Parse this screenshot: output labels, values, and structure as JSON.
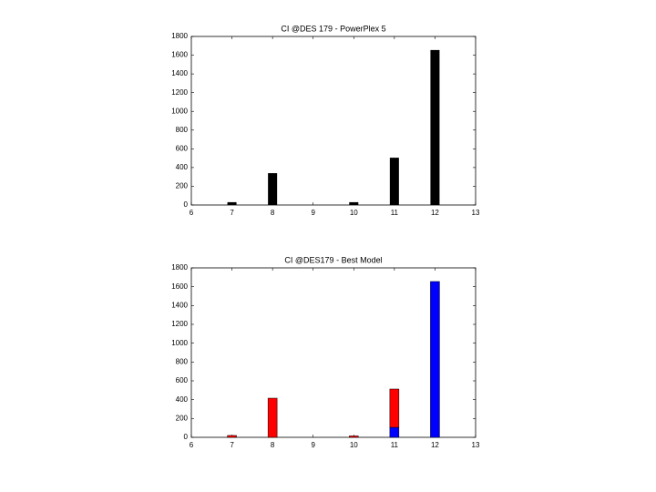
{
  "chart_data": [
    {
      "type": "bar",
      "title": "CI @DES 179 - PowerPlex 5",
      "x": [
        7,
        8,
        9,
        10,
        11,
        12
      ],
      "values": [
        30,
        340,
        0,
        30,
        505,
        1655
      ],
      "color": "#000000",
      "xlim": [
        6,
        13
      ],
      "xticks": [
        6,
        7,
        8,
        9,
        10,
        11,
        12,
        13
      ],
      "ylim": [
        0,
        1800
      ],
      "yticks": [
        0,
        200,
        400,
        600,
        800,
        1000,
        1200,
        1400,
        1600,
        1800
      ]
    },
    {
      "type": "stacked-bar",
      "title": "CI @DES179 - Best Model",
      "x": [
        7,
        8,
        9,
        10,
        11,
        12
      ],
      "series": [
        {
          "color": "#0000ff",
          "values": [
            0,
            0,
            0,
            0,
            106,
            1655
          ]
        },
        {
          "color": "#ff0000",
          "values": [
            20,
            416,
            0,
            15,
            407,
            0
          ]
        }
      ],
      "xlim": [
        6,
        13
      ],
      "xticks": [
        6,
        7,
        8,
        9,
        10,
        11,
        12,
        13
      ],
      "ylim": [
        0,
        1800
      ],
      "yticks": [
        0,
        200,
        400,
        600,
        800,
        1000,
        1200,
        1400,
        1600,
        1800
      ]
    }
  ]
}
